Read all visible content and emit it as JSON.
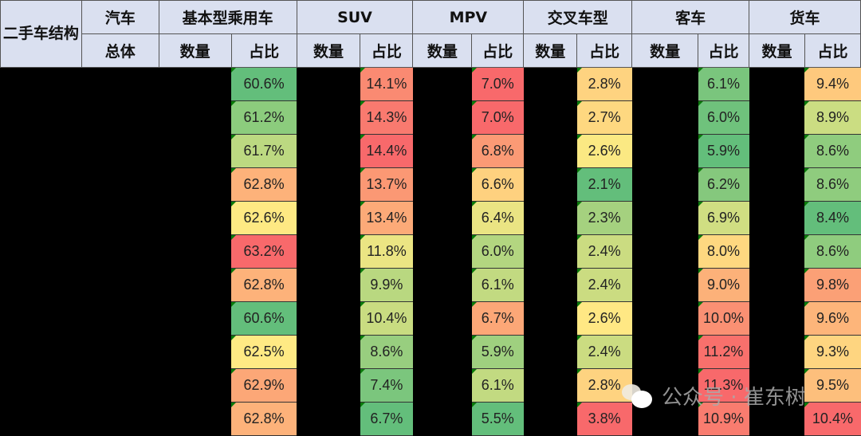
{
  "table": {
    "corner_label": "二手车结构",
    "groups": [
      {
        "name": "汽车",
        "sub": [
          "总体"
        ]
      },
      {
        "name": "基本型乘用车",
        "sub": [
          "数量",
          "占比"
        ]
      },
      {
        "name": "SUV",
        "sub": [
          "数量",
          "占比"
        ]
      },
      {
        "name": "MPV",
        "sub": [
          "数量",
          "占比"
        ]
      },
      {
        "name": "交叉车型",
        "sub": [
          "数量",
          "占比"
        ]
      },
      {
        "name": "客车",
        "sub": [
          "数量",
          "占比"
        ]
      },
      {
        "name": "货车",
        "sub": [
          "数量",
          "占比"
        ]
      }
    ],
    "rows": [
      {
        "basic": "60.6%",
        "suv": "14.1%",
        "mpv": "7.0%",
        "cross": "2.8%",
        "bus": "6.1%",
        "truck": "9.4%"
      },
      {
        "basic": "61.2%",
        "suv": "14.3%",
        "mpv": "7.0%",
        "cross": "2.7%",
        "bus": "6.0%",
        "truck": "8.9%"
      },
      {
        "basic": "61.7%",
        "suv": "14.4%",
        "mpv": "6.8%",
        "cross": "2.6%",
        "bus": "5.9%",
        "truck": "8.6%"
      },
      {
        "basic": "62.8%",
        "suv": "13.7%",
        "mpv": "6.6%",
        "cross": "2.1%",
        "bus": "6.2%",
        "truck": "8.6%"
      },
      {
        "basic": "62.6%",
        "suv": "13.4%",
        "mpv": "6.4%",
        "cross": "2.3%",
        "bus": "6.9%",
        "truck": "8.4%"
      },
      {
        "basic": "63.2%",
        "suv": "11.8%",
        "mpv": "6.0%",
        "cross": "2.4%",
        "bus": "8.0%",
        "truck": "8.6%"
      },
      {
        "basic": "62.8%",
        "suv": "9.9%",
        "mpv": "6.1%",
        "cross": "2.4%",
        "bus": "9.0%",
        "truck": "9.8%"
      },
      {
        "basic": "60.6%",
        "suv": "10.4%",
        "mpv": "6.7%",
        "cross": "2.6%",
        "bus": "10.0%",
        "truck": "9.6%"
      },
      {
        "basic": "62.5%",
        "suv": "8.6%",
        "mpv": "5.9%",
        "cross": "2.4%",
        "bus": "11.2%",
        "truck": "9.3%"
      },
      {
        "basic": "62.9%",
        "suv": "7.4%",
        "mpv": "6.1%",
        "cross": "2.8%",
        "bus": "11.3%",
        "truck": "9.5%"
      },
      {
        "basic": "62.8%",
        "suv": "6.7%",
        "mpv": "5.5%",
        "cross": "3.8%",
        "bus": "10.9%",
        "truck": "10.4%"
      }
    ],
    "colors": {
      "basic": [
        "#63be7b",
        "#8ccc7d",
        "#bcd981",
        "#fdb27a",
        "#fee983",
        "#f8696b",
        "#fdb27a",
        "#63be7b",
        "#ffea84",
        "#fca777",
        "#fdb27a"
      ],
      "suv": [
        "#fa8a72",
        "#f97a6f",
        "#f8696b",
        "#fb9874",
        "#fcaa78",
        "#ebe583",
        "#b9d880",
        "#c9dc81",
        "#98ce7f",
        "#7bc67d",
        "#63be7b"
      ],
      "mpv": [
        "#f8696b",
        "#f8696b",
        "#fb9a75",
        "#fed17f",
        "#eae483",
        "#b3d680",
        "#c2da81",
        "#fca777",
        "#9fd07f",
        "#c2da81",
        "#63be7b"
      ],
      "cross": [
        "#fed380",
        "#fed880",
        "#fbe983",
        "#63be7b",
        "#a5d17f",
        "#cbdc81",
        "#cbdc81",
        "#ffe884",
        "#cbdc81",
        "#fed380",
        "#f8696b"
      ],
      "bus": [
        "#7ac57d",
        "#6fc27c",
        "#63be7b",
        "#85c87d",
        "#d0de82",
        "#fed880",
        "#fcb179",
        "#fa9073",
        "#f8706c",
        "#f8696b",
        "#f97c6f"
      ],
      "truck": [
        "#fec97d",
        "#cbdd82",
        "#8fcc7e",
        "#8fcc7e",
        "#63be7b",
        "#8fcc7e",
        "#fba076",
        "#fdb57a",
        "#fed580",
        "#fdbf7c",
        "#f8696b"
      ]
    }
  },
  "watermark": {
    "text": "公众号 · 崔东树",
    "icon": "wechat-icon"
  }
}
